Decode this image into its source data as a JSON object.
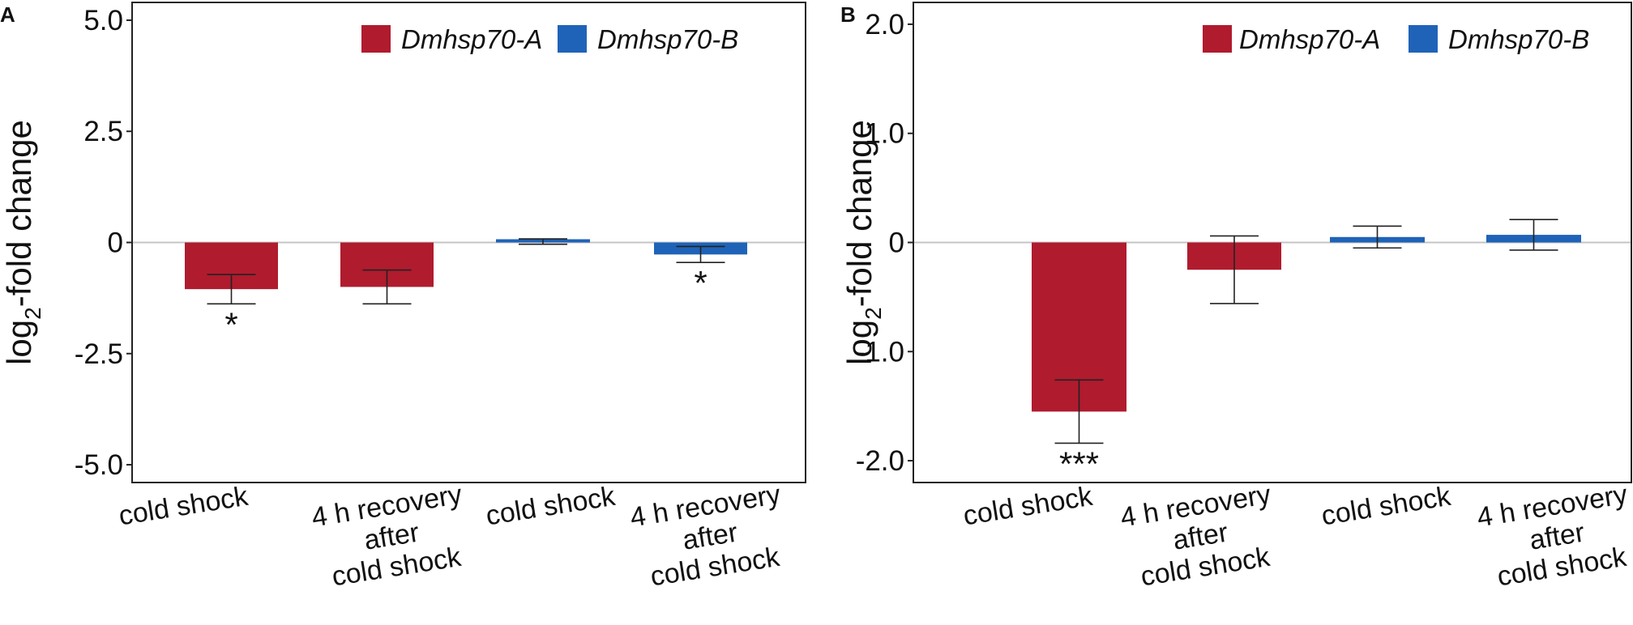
{
  "colors": {
    "series_a": "#B01B2E",
    "series_b": "#1F63B8",
    "frame": "#222222",
    "zero_line": "#c4c4c4",
    "text": "#111111"
  },
  "legend_entries": [
    "Dmhsp70-A",
    "Dmhsp70-B"
  ],
  "chart_data": [
    {
      "type": "bar",
      "panel_label": "A",
      "ylabel": "log2-fold change",
      "ylabel_main": "log",
      "ylabel_sub": "2",
      "ylabel_rest": "-fold change",
      "ylim": [
        -5.4,
        5.4
      ],
      "yticks": [
        5.0,
        2.5,
        0,
        -2.5,
        -5.0
      ],
      "ytick_labels": [
        "5.0",
        "2.5",
        "0",
        "-2.5",
        "-5.0"
      ],
      "categories": [
        [
          "cold shock"
        ],
        [
          "4 h recovery",
          "after",
          "cold shock"
        ],
        [
          "cold shock"
        ],
        [
          "4 h recovery",
          "after",
          "cold shock"
        ]
      ],
      "bars": [
        {
          "series": "Dmhsp70-A",
          "value": -1.05,
          "err": 0.33,
          "sig": "*"
        },
        {
          "series": "Dmhsp70-A",
          "value": -1.0,
          "err": 0.38,
          "sig": ""
        },
        {
          "series": "Dmhsp70-B",
          "value": 0.02,
          "err": 0.06,
          "sig": ""
        },
        {
          "series": "Dmhsp70-B",
          "value": -0.27,
          "err": 0.18,
          "sig": "*"
        }
      ]
    },
    {
      "type": "bar",
      "panel_label": "B",
      "ylabel": "log2-fold change",
      "ylabel_main": "log",
      "ylabel_sub": "2",
      "ylabel_rest": "-fold change",
      "ylim": [
        -2.2,
        2.2
      ],
      "yticks": [
        2.0,
        1.0,
        0,
        -1.0,
        -2.0
      ],
      "ytick_labels": [
        "2.0",
        "1.0",
        "0",
        "-1.0",
        "-2.0"
      ],
      "categories": [
        [
          "cold shock"
        ],
        [
          "4 h recovery",
          "after",
          "cold shock"
        ],
        [
          "cold shock"
        ],
        [
          "4 h recovery",
          "after",
          "cold shock"
        ]
      ],
      "bars": [
        {
          "series": "Dmhsp70-A",
          "value": -1.55,
          "err": 0.29,
          "sig": "***"
        },
        {
          "series": "Dmhsp70-A",
          "value": -0.25,
          "err": 0.31,
          "sig": ""
        },
        {
          "series": "Dmhsp70-B",
          "value": 0.05,
          "err": 0.1,
          "sig": ""
        },
        {
          "series": "Dmhsp70-B",
          "value": 0.07,
          "err": 0.14,
          "sig": ""
        }
      ]
    }
  ]
}
